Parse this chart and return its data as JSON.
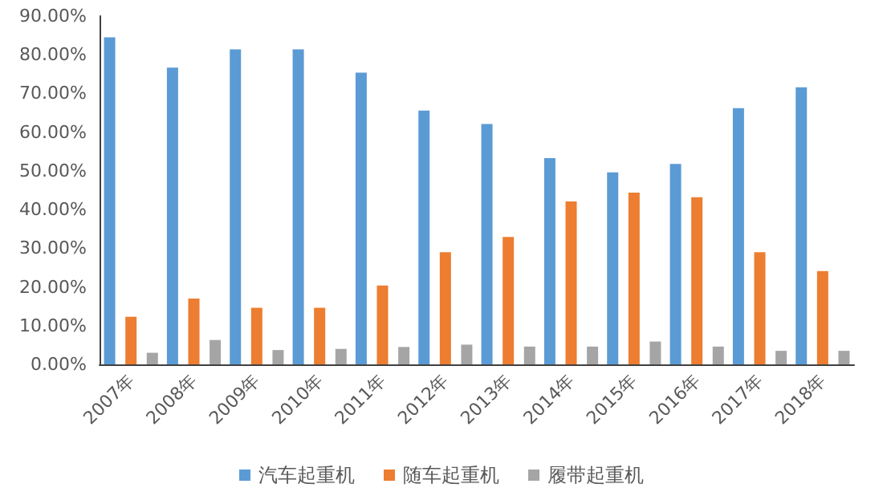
{
  "chart_data": {
    "type": "bar",
    "categories": [
      "2007年",
      "2008年",
      "2009年",
      "2010年",
      "2011年",
      "2012年",
      "2013年",
      "2014年",
      "2015年",
      "2016年",
      "2017年",
      "2018年"
    ],
    "series": [
      {
        "name": "汽车起重机",
        "color": "#5b9bd5",
        "values": [
          84.5,
          76.7,
          81.4,
          81.4,
          75.4,
          65.6,
          62.1,
          53.3,
          49.6,
          51.8,
          66.2,
          71.6
        ]
      },
      {
        "name": "随车起重机",
        "color": "#ed7d31",
        "values": [
          12.3,
          17.0,
          14.6,
          14.6,
          20.4,
          29.0,
          32.9,
          42.1,
          44.4,
          43.2,
          29.0,
          24.1
        ]
      },
      {
        "name": "履带起重机",
        "color": "#a5a5a5",
        "values": [
          3.0,
          6.3,
          3.7,
          4.0,
          4.5,
          5.1,
          4.6,
          4.6,
          5.9,
          4.6,
          3.5,
          3.5
        ]
      }
    ],
    "ylim": [
      0,
      90
    ],
    "yticks": [
      {
        "value": 0,
        "label": "0.00%"
      },
      {
        "value": 10,
        "label": "10.00%"
      },
      {
        "value": 20,
        "label": "20.00%"
      },
      {
        "value": 30,
        "label": "30.00%"
      },
      {
        "value": 40,
        "label": "40.00%"
      },
      {
        "value": 50,
        "label": "50.00%"
      },
      {
        "value": 60,
        "label": "60.00%"
      },
      {
        "value": 70,
        "label": "70.00%"
      },
      {
        "value": 80,
        "label": "80.00%"
      },
      {
        "value": 90,
        "label": "90.00%"
      }
    ],
    "grid": false,
    "legend": "bottom"
  }
}
